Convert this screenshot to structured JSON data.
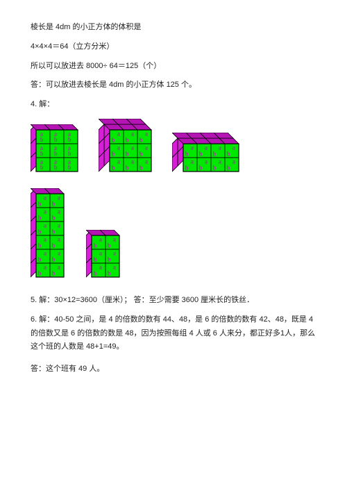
{
  "text": {
    "l1": "棱长是 4dm 的小正方体的体积是",
    "l2": "4×4×4＝64（立方分米）",
    "l3": "所以可以放进去 8000÷ 64＝125（个）",
    "l4": "答：可以放进去棱长是 4dm 的小正方体 125 个。",
    "l5": "4. 解：",
    "l6": "5. 解：30×12=3600（厘米）；  答：至少需要 3600 厘米长的铁丝．",
    "l7": "6. 解：40-50 之间，是 4 的倍数的数有 44、48，是 6 的倍数的数有 42、48，既是 4 的倍数又是 6 的倍数的数是 48，因为按照每组 4 人或 6 人来分，都正好多1人，那么这个班的人数是 48+1=49。",
    "l8": "答：这个班有 49 人。"
  },
  "colors": {
    "text": "#222222",
    "front": "#00e800",
    "side": "#d61fd6",
    "top_dark": "#b314b3",
    "line": "#000000",
    "label_a": "#c400c4",
    "label_b": "#c400c4"
  },
  "cell": 20,
  "depth": 8,
  "label_fs": 9,
  "shapes": [
    {
      "cols": 3,
      "rows": 3,
      "depth_cells": 1,
      "labels": "ab_vert",
      "show_side": true,
      "show_top": true
    },
    {
      "cols": 3,
      "rows": 3,
      "depth_cells": 2,
      "labels": "ab_horiz",
      "show_side": true,
      "show_top": true
    },
    {
      "cols": 4,
      "rows": 2,
      "depth_cells": 2,
      "labels": "ab_horiz",
      "show_side": true,
      "show_top": true
    },
    {
      "cols": 2,
      "rows": 6,
      "depth_cells": 1,
      "labels": "ab_horiz",
      "show_side": true,
      "show_top": true,
      "tall": true
    },
    {
      "cols": 2,
      "rows": 3,
      "depth_cells": 1,
      "labels": "ab_horiz",
      "show_side": true,
      "show_top": true
    }
  ]
}
